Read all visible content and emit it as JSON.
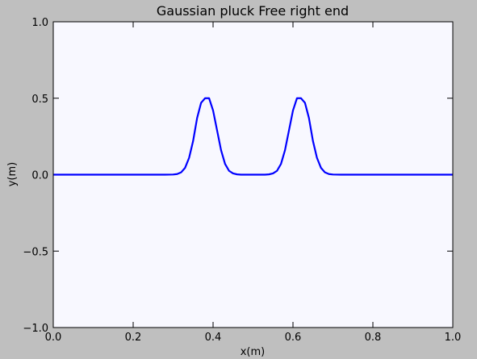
{
  "chart_data": {
    "type": "line",
    "title": "Gaussian pluck Free right end",
    "xlabel": "x(m)",
    "ylabel": "y(m)",
    "xlim": [
      0.0,
      1.0
    ],
    "ylim": [
      -1.0,
      1.0
    ],
    "xticks": [
      0.0,
      0.2,
      0.4,
      0.6,
      0.8,
      1.0
    ],
    "xtick_labels": [
      "0.0",
      "0.2",
      "0.4",
      "0.6",
      "0.8",
      "1.0"
    ],
    "yticks": [
      -1.0,
      -0.5,
      0.0,
      0.5,
      1.0
    ],
    "ytick_labels": [
      "−1.0",
      "−0.5",
      "0.0",
      "0.5",
      "1.0"
    ],
    "grid": false,
    "legend": "none",
    "series": [
      {
        "color": "#0000ff",
        "x": [
          0.0,
          0.1,
          0.2,
          0.28,
          0.3,
          0.31,
          0.32,
          0.33,
          0.34,
          0.35,
          0.36,
          0.37,
          0.38,
          0.39,
          0.4,
          0.41,
          0.42,
          0.43,
          0.44,
          0.45,
          0.46,
          0.47,
          0.48,
          0.5,
          0.52,
          0.53,
          0.54,
          0.55,
          0.56,
          0.57,
          0.58,
          0.59,
          0.6,
          0.61,
          0.62,
          0.63,
          0.64,
          0.65,
          0.66,
          0.67,
          0.68,
          0.69,
          0.7,
          0.72,
          0.8,
          0.9,
          1.0
        ],
        "y": [
          0.0,
          0.0,
          0.0,
          0.0,
          0.001,
          0.004,
          0.015,
          0.045,
          0.11,
          0.22,
          0.37,
          0.47,
          0.5,
          0.5,
          0.42,
          0.29,
          0.16,
          0.07,
          0.025,
          0.008,
          0.002,
          0.0,
          0.0,
          0.0,
          0.0,
          0.0,
          0.002,
          0.008,
          0.025,
          0.07,
          0.16,
          0.29,
          0.42,
          0.5,
          0.5,
          0.47,
          0.37,
          0.22,
          0.11,
          0.045,
          0.015,
          0.004,
          0.001,
          0.0,
          0.0,
          0.0,
          0.0
        ]
      }
    ]
  }
}
